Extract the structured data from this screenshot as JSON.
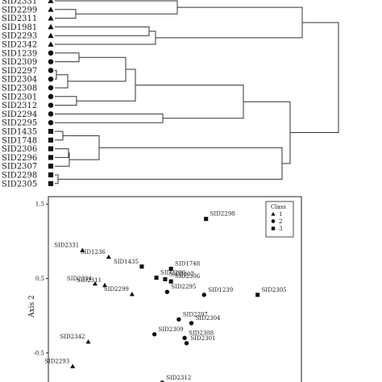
{
  "dendrogram": {
    "leaves": [
      {
        "label": "SID2331",
        "marker": "triangle"
      },
      {
        "label": "SID2299",
        "marker": "triangle"
      },
      {
        "label": "SID2311",
        "marker": "triangle"
      },
      {
        "label": "SID1981",
        "marker": "triangle"
      },
      {
        "label": "SID2293",
        "marker": "triangle"
      },
      {
        "label": "SID2342",
        "marker": "triangle"
      },
      {
        "label": "SID1239",
        "marker": "circle"
      },
      {
        "label": "SID2309",
        "marker": "circle"
      },
      {
        "label": "SID2297",
        "marker": "circle"
      },
      {
        "label": "SID2304",
        "marker": "circle"
      },
      {
        "label": "SID2308",
        "marker": "circle"
      },
      {
        "label": "SID2301",
        "marker": "circle"
      },
      {
        "label": "SID2312",
        "marker": "circle"
      },
      {
        "label": "SID2294",
        "marker": "circle"
      },
      {
        "label": "SID2295",
        "marker": "circle"
      },
      {
        "label": "SID1435",
        "marker": "square"
      },
      {
        "label": "SID1748",
        "marker": "square"
      },
      {
        "label": "SID2306",
        "marker": "square"
      },
      {
        "label": "SID2296",
        "marker": "square"
      },
      {
        "label": "SID2307",
        "marker": "square"
      },
      {
        "label": "SID2298",
        "marker": "square"
      },
      {
        "label": "SID2305",
        "marker": "square"
      }
    ]
  },
  "chart_data": {
    "type": "scatter",
    "title": "",
    "xlabel": "",
    "ylabel": "Axis 2",
    "ylim": [
      -1.0,
      1.6
    ],
    "yticks": [
      "1.5",
      "0.5",
      "-0.5"
    ],
    "yticks_values": [
      1.5,
      0.5,
      -0.5
    ],
    "xlim": [
      -1.2,
      1.4
    ],
    "legend": {
      "title": "Class",
      "entries": [
        "1",
        "2",
        "3"
      ],
      "placement": "top-right"
    },
    "series": [
      {
        "name": "1",
        "marker": "triangle",
        "points": [
          {
            "label": "SID2331",
            "x": -0.85,
            "y": 0.88
          },
          {
            "label": "SID1236",
            "x": -0.58,
            "y": 0.79
          },
          {
            "label": "SID2334",
            "x": -0.72,
            "y": 0.43
          },
          {
            "label": "SID2311",
            "x": -0.62,
            "y": 0.41
          },
          {
            "label": "SID2299",
            "x": -0.34,
            "y": 0.29
          },
          {
            "label": "SID2342",
            "x": -0.79,
            "y": -0.35
          },
          {
            "label": "SID2293",
            "x": -0.95,
            "y": -0.68
          }
        ]
      },
      {
        "name": "2",
        "marker": "circle",
        "points": [
          {
            "label": "SID2295",
            "x": 0.02,
            "y": 0.32
          },
          {
            "label": "SID1239",
            "x": 0.4,
            "y": 0.28
          },
          {
            "label": "SID2297",
            "x": 0.14,
            "y": -0.05
          },
          {
            "label": "SID2304",
            "x": 0.27,
            "y": -0.1
          },
          {
            "label": "SID2309",
            "x": -0.11,
            "y": -0.25
          },
          {
            "label": "SID2308",
            "x": 0.2,
            "y": -0.3
          },
          {
            "label": "SID2301",
            "x": 0.22,
            "y": -0.37
          },
          {
            "label": "SID2312",
            "x": -0.03,
            "y": -0.9
          }
        ]
      },
      {
        "name": "3",
        "marker": "square",
        "points": [
          {
            "label": "SID2298",
            "x": 0.42,
            "y": 1.3
          },
          {
            "label": "SID1435",
            "x": -0.24,
            "y": 0.66
          },
          {
            "label": "SID1748",
            "x": 0.06,
            "y": 0.63
          },
          {
            "label": "SID2296",
            "x": -0.09,
            "y": 0.51
          },
          {
            "label": "SID2307",
            "x": 0.0,
            "y": 0.49
          },
          {
            "label": "SID2306",
            "x": 0.06,
            "y": 0.46
          },
          {
            "label": "SID2305",
            "x": 0.95,
            "y": 0.28
          }
        ]
      }
    ]
  }
}
